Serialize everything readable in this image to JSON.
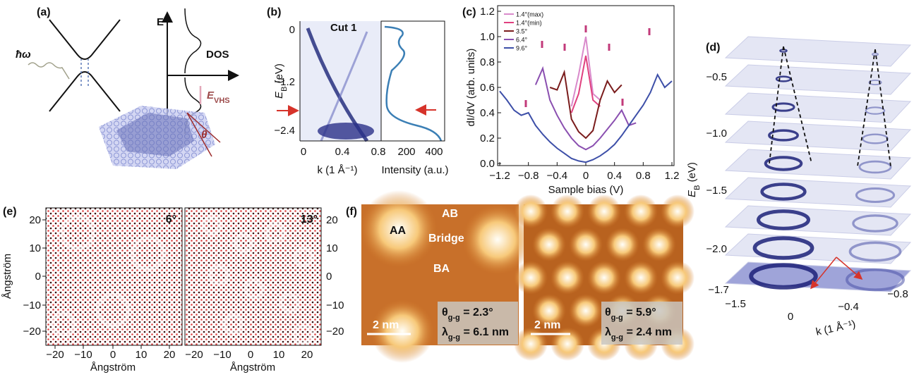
{
  "panel_labels": [
    "(a)",
    "(b)",
    "(c)",
    "(d)",
    "(e)",
    "(f)"
  ],
  "panel_a": {
    "photon": "ħω",
    "energy_axis": "E",
    "dos_axis": "DOS",
    "vhs": {
      "symbol": "E",
      "sub": "VHS"
    },
    "twist": "θ"
  },
  "panel_b": {
    "cut": "Cut 1",
    "y_label": {
      "symbol": "E",
      "sub": "B",
      "unit": " (eV)"
    },
    "yticks": [
      "0",
      "−1.2",
      "−2.4"
    ],
    "k_ticks": [
      "0",
      "0.4",
      "0.8"
    ],
    "intensity_ticks": [
      "200",
      "400"
    ],
    "k_label": "k (1 Å⁻¹)",
    "intensity_label": "Intensity (a.u.)"
  },
  "chart_data": {
    "type": "line",
    "x_label": "Sample bias (V)",
    "y_label": "dI/dV (arb. units)",
    "x": [
      -1.2,
      -1.1,
      -1.0,
      -0.9,
      -0.8,
      -0.7,
      -0.6,
      -0.5,
      -0.4,
      -0.3,
      -0.2,
      -0.1,
      0,
      0.1,
      0.2,
      0.3,
      0.4,
      0.5,
      0.6,
      0.7,
      0.8,
      0.9,
      1.0,
      1.1,
      1.2
    ],
    "series": [
      {
        "name": "1.4°(max)",
        "color": "#d98acb",
        "values": [
          null,
          null,
          null,
          null,
          null,
          null,
          null,
          null,
          null,
          null,
          0.45,
          0.7,
          1.0,
          0.55,
          0.5,
          null,
          null,
          null,
          null,
          null,
          null,
          null,
          null,
          null,
          null
        ]
      },
      {
        "name": "1.4°(min)",
        "color": "#e0407f",
        "values": [
          null,
          null,
          null,
          null,
          null,
          null,
          null,
          null,
          null,
          null,
          0.4,
          0.55,
          0.85,
          0.5,
          0.45,
          null,
          null,
          null,
          null,
          null,
          null,
          null,
          null,
          null,
          null
        ]
      },
      {
        "name": "3.5°",
        "color": "#7a1c1c",
        "values": [
          null,
          null,
          null,
          null,
          null,
          null,
          null,
          0.6,
          0.58,
          0.72,
          0.35,
          0.25,
          0.2,
          0.26,
          0.5,
          0.65,
          0.56,
          0.62,
          null,
          null,
          null,
          null,
          null,
          null,
          null
        ]
      },
      {
        "name": "6.4°",
        "color": "#8a4fb0",
        "values": [
          null,
          null,
          null,
          null,
          null,
          0.62,
          0.75,
          0.5,
          0.38,
          0.28,
          0.2,
          0.14,
          0.11,
          0.14,
          0.2,
          0.27,
          0.34,
          0.42,
          0.3,
          0.32,
          null,
          null,
          null,
          null,
          null
        ]
      },
      {
        "name": "9.6°",
        "color": "#3d4fa8",
        "values": [
          0.57,
          0.5,
          0.42,
          0.38,
          0.4,
          0.3,
          0.23,
          0.17,
          0.12,
          0.08,
          0.04,
          0.02,
          0.01,
          0.03,
          0.06,
          0.1,
          0.15,
          0.22,
          0.3,
          0.38,
          0.46,
          0.56,
          0.7,
          0.6,
          0.65
        ]
      }
    ],
    "xlim": [
      -1.2,
      1.2
    ],
    "xticks": [
      {
        "value": -1.2,
        "label": "−1.2"
      },
      {
        "value": -0.8,
        "label": "−0.8"
      },
      {
        "value": -0.4,
        "label": "−0.4"
      },
      0,
      0.4,
      0.8,
      1.2
    ],
    "ylim": [
      0,
      1.2
    ],
    "yticks": [
      {
        "value": 0,
        "label": "0.0"
      },
      0.2,
      0.4,
      0.6,
      0.8,
      {
        "value": 1,
        "label": "1.0"
      },
      1.2
    ],
    "legend": "upper left"
  },
  "panel_d": {
    "y_label": {
      "symbol": "E",
      "sub": "B",
      "unit": " (eV)"
    },
    "energy_ticks": [
      "−0.5",
      "−1.0",
      "−1.5",
      "−2.0"
    ],
    "ky_ticks": [
      "−1.7",
      "−1.5"
    ],
    "kx_ticks": [
      "0",
      "−0.4",
      "−0.8"
    ],
    "k_label": "k (1 Å⁻¹)"
  },
  "panel_e": {
    "left_angle": "6°",
    "right_angle": "13°",
    "ticks": [
      "−20",
      "−10",
      "0",
      "10",
      "20"
    ],
    "axis_label": "Ångström"
  },
  "panel_f": {
    "sites": {
      "aa": "AA",
      "ab": "AB",
      "bridge": "Bridge",
      "ba": "BA"
    },
    "scale": "2 nm",
    "left": {
      "theta": {
        "symbol": "θ",
        "sub": "g-g",
        "rest": " = 2.3°"
      },
      "lambda": {
        "symbol": "λ",
        "sub": "g-g",
        "rest": " = 6.1 nm"
      }
    },
    "right": {
      "theta": {
        "symbol": "θ",
        "sub": "g-g",
        "rest": " = 5.9°"
      },
      "lambda": {
        "symbol": "λ",
        "sub": "g-g",
        "rest": " = 2.4 nm"
      }
    }
  }
}
